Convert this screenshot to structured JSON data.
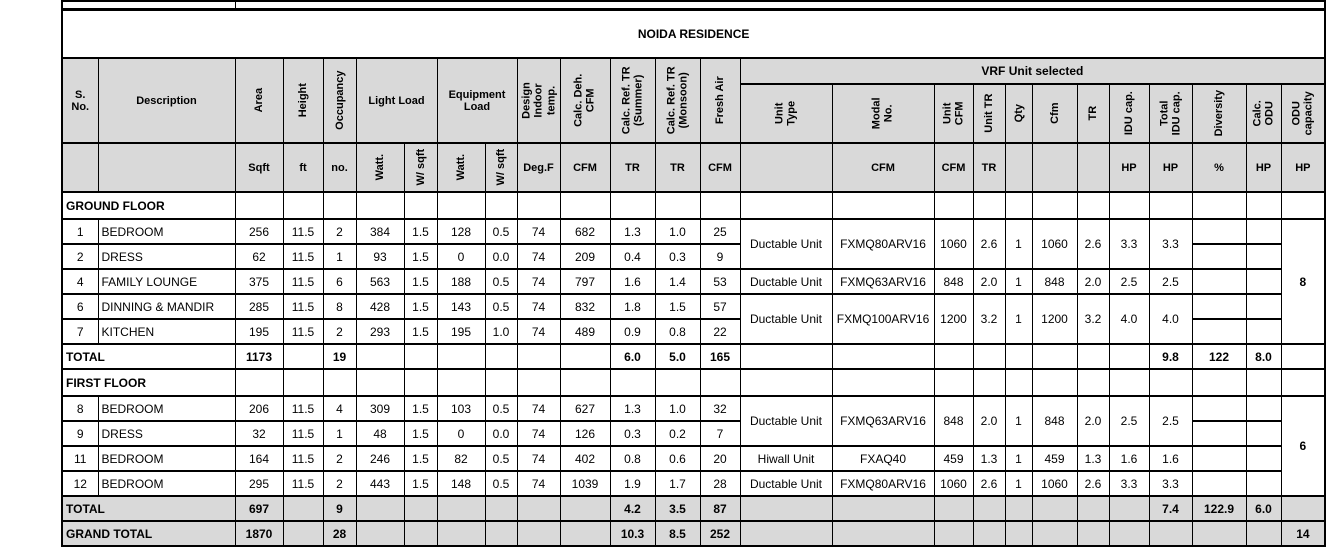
{
  "title": "NOIDA RESIDENCE",
  "headers": {
    "sno": "S. No.",
    "description": "Description",
    "area": "Area",
    "height": "Height",
    "occupancy": "Occupancy",
    "light_load": "Light Load",
    "equipment_load": "Equipment Load",
    "design_temp": "Design Indoor temp.",
    "calc_deh": "Calc. Deh. CFM",
    "calc_ref_summer": "Calc. Ref. TR (Summer)",
    "calc_ref_monsoon": "Calc. Ref. TR (Monsoon)",
    "fresh_air": "Fresh Air",
    "vrf_band": "VRF Unit selected",
    "unit_type": "Unit Type",
    "modal_no": "Modal No.",
    "unit_cfm": "Unit CFM",
    "unit_tr": "Unit TR",
    "qty": "Qty",
    "cfm": "Cfm",
    "tr": "TR",
    "idu_cap": "IDU cap.",
    "total_idu_cap": "Total IDU cap.",
    "diversity": "Diversity",
    "calc_odu": "Calc. ODU",
    "odu_capacity": "ODU capacity"
  },
  "units": {
    "sqft": "Sqft",
    "ft": "ft",
    "no": "no.",
    "watt": "Watt.",
    "w_sqft": "W/ sqft",
    "degf": "Deg.F",
    "cfm": "CFM",
    "tr": "TR",
    "hp": "HP",
    "pct": "%"
  },
  "colors": {
    "header_fill": "#d9d9d9",
    "row_fill": "#ffffff",
    "border": "#000000"
  },
  "rows": [
    {
      "kind": "section",
      "label": "GROUND FLOOR"
    },
    {
      "kind": "data",
      "no": "1",
      "desc": "BEDROOM",
      "area": "256",
      "height": "11.5",
      "occ": "2",
      "lw": "384",
      "lws": "1.5",
      "ew": "128",
      "ews": "0.5",
      "temp": "74",
      "deh": "682",
      "trs": "1.3",
      "trm": "1.0",
      "fa": "25",
      "vrf": {
        "span": 2,
        "type": "Ductable Unit",
        "modal": "FXMQ80ARV16",
        "ucfm": "1060",
        "utr": "2.6",
        "qty": "1",
        "cfm": "1060",
        "tr": "2.6",
        "idu": "3.3",
        "tidu": "3.3"
      },
      "odu": {
        "span": 5,
        "value": "8"
      }
    },
    {
      "kind": "data",
      "no": "2",
      "desc": "DRESS",
      "area": "62",
      "height": "11.5",
      "occ": "1",
      "lw": "93",
      "lws": "1.5",
      "ew": "0",
      "ews": "0.0",
      "temp": "74",
      "deh": "209",
      "trs": "0.4",
      "trm": "0.3",
      "fa": "9",
      "vrf": null
    },
    {
      "kind": "data",
      "no": "4",
      "desc": "FAMILY LOUNGE",
      "area": "375",
      "height": "11.5",
      "occ": "6",
      "lw": "563",
      "lws": "1.5",
      "ew": "188",
      "ews": "0.5",
      "temp": "74",
      "deh": "797",
      "trs": "1.6",
      "trm": "1.4",
      "fa": "53",
      "vrf": {
        "span": 1,
        "type": "Ductable Unit",
        "modal": "FXMQ63ARV16",
        "ucfm": "848",
        "utr": "2.0",
        "qty": "1",
        "cfm": "848",
        "tr": "2.0",
        "idu": "2.5",
        "tidu": "2.5"
      }
    },
    {
      "kind": "data",
      "no": "6",
      "desc": "DINNING & MANDIR",
      "area": "285",
      "height": "11.5",
      "occ": "8",
      "lw": "428",
      "lws": "1.5",
      "ew": "143",
      "ews": "0.5",
      "temp": "74",
      "deh": "832",
      "trs": "1.8",
      "trm": "1.5",
      "fa": "57",
      "vrf": {
        "span": 2,
        "type": "Ductable Unit",
        "modal": "FXMQ100ARV16",
        "ucfm": "1200",
        "utr": "3.2",
        "qty": "1",
        "cfm": "1200",
        "tr": "3.2",
        "idu": "4.0",
        "tidu": "4.0"
      }
    },
    {
      "kind": "data",
      "no": "7",
      "desc": "KITCHEN",
      "area": "195",
      "height": "11.5",
      "occ": "2",
      "lw": "293",
      "lws": "1.5",
      "ew": "195",
      "ews": "1.0",
      "temp": "74",
      "deh": "489",
      "trs": "0.9",
      "trm": "0.8",
      "fa": "22",
      "vrf": null
    },
    {
      "kind": "total",
      "label": "TOTAL",
      "shaded": false,
      "area": "1173",
      "occ": "19",
      "trs": "6.0",
      "trm": "5.0",
      "fa": "165",
      "tidu": "9.8",
      "div": "122",
      "codu": "8.0",
      "odu": ""
    },
    {
      "kind": "section",
      "label": "FIRST FLOOR"
    },
    {
      "kind": "data",
      "no": "8",
      "desc": "BEDROOM",
      "area": "206",
      "height": "11.5",
      "occ": "4",
      "lw": "309",
      "lws": "1.5",
      "ew": "103",
      "ews": "0.5",
      "temp": "74",
      "deh": "627",
      "trs": "1.3",
      "trm": "1.0",
      "fa": "32",
      "vrf": {
        "span": 2,
        "type": "Ductable Unit",
        "modal": "FXMQ63ARV16",
        "ucfm": "848",
        "utr": "2.0",
        "qty": "1",
        "cfm": "848",
        "tr": "2.0",
        "idu": "2.5",
        "tidu": "2.5"
      },
      "odu": {
        "span": 4,
        "value": "6"
      }
    },
    {
      "kind": "data",
      "no": "9",
      "desc": "DRESS",
      "area": "32",
      "height": "11.5",
      "occ": "1",
      "lw": "48",
      "lws": "1.5",
      "ew": "0",
      "ews": "0.0",
      "temp": "74",
      "deh": "126",
      "trs": "0.3",
      "trm": "0.2",
      "fa": "7",
      "vrf": null
    },
    {
      "kind": "data",
      "no": "11",
      "desc": "BEDROOM",
      "area": "164",
      "height": "11.5",
      "occ": "2",
      "lw": "246",
      "lws": "1.5",
      "ew": "82",
      "ews": "0.5",
      "temp": "74",
      "deh": "402",
      "trs": "0.8",
      "trm": "0.6",
      "fa": "20",
      "vrf": {
        "span": 1,
        "type": "Hiwall Unit",
        "modal": "FXAQ40",
        "ucfm": "459",
        "utr": "1.3",
        "qty": "1",
        "cfm": "459",
        "tr": "1.3",
        "idu": "1.6",
        "tidu": "1.6"
      }
    },
    {
      "kind": "data",
      "no": "12",
      "desc": "BEDROOM",
      "area": "295",
      "height": "11.5",
      "occ": "2",
      "lw": "443",
      "lws": "1.5",
      "ew": "148",
      "ews": "0.5",
      "temp": "74",
      "deh": "1039",
      "trs": "1.9",
      "trm": "1.7",
      "fa": "28",
      "vrf": {
        "span": 1,
        "type": "Ductable Unit",
        "modal": "FXMQ80ARV16",
        "ucfm": "1060",
        "utr": "2.6",
        "qty": "1",
        "cfm": "1060",
        "tr": "2.6",
        "idu": "3.3",
        "tidu": "3.3"
      }
    },
    {
      "kind": "total",
      "label": "TOTAL",
      "shaded": true,
      "area": "697",
      "occ": "9",
      "trs": "4.2",
      "trm": "3.5",
      "fa": "87",
      "tidu": "7.4",
      "div": "122.9",
      "codu": "6.0",
      "odu": ""
    },
    {
      "kind": "total",
      "label": "GRAND TOTAL",
      "shaded": true,
      "area": "1870",
      "occ": "28",
      "trs": "10.3",
      "trm": "8.5",
      "fa": "252",
      "tidu": "",
      "div": "",
      "codu": "",
      "odu": "14"
    }
  ]
}
